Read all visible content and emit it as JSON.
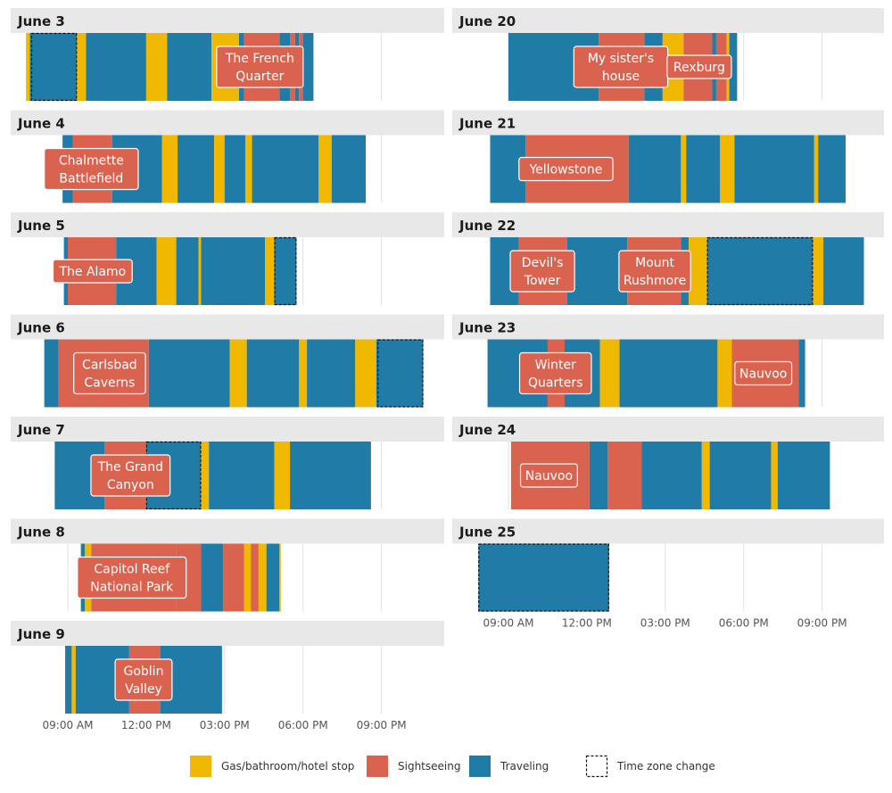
{
  "chart_data": {
    "type": "timeline",
    "colors": {
      "stop": "#F0B800",
      "sight": "#D9634E",
      "travel": "#207BA6",
      "panel": "#E8E8E8",
      "grid": "#E2E2E2",
      "annotation_border": "#ffffff"
    },
    "legend": [
      {
        "key": "stop",
        "label": "Gas/bathroom/hotel stop"
      },
      {
        "key": "sight",
        "label": "Sightseeing"
      },
      {
        "key": "travel",
        "label": "Traveling"
      },
      {
        "key": "tz",
        "label": "Time zone change"
      }
    ],
    "x_ticks": [
      {
        "hour": 9,
        "label": "09:00 AM"
      },
      {
        "hour": 12,
        "label": "12:00 PM"
      },
      {
        "hour": 15,
        "label": "03:00 PM"
      },
      {
        "hour": 18,
        "label": "06:00 PM"
      },
      {
        "hour": 21,
        "label": "09:00 PM"
      }
    ],
    "x_range_hours": [
      7.2,
      20.6
    ],
    "legend_position": "bottom",
    "days": [
      {
        "label": "June 3",
        "column": 0,
        "row": 0,
        "segments": [
          {
            "s": 7.4,
            "e": 7.55,
            "t": "stop"
          },
          {
            "s": 7.55,
            "e": 9.35,
            "t": "travel"
          },
          {
            "s": 9.35,
            "e": 9.7,
            "t": "stop"
          },
          {
            "s": 9.7,
            "e": 12.0,
            "t": "travel"
          },
          {
            "s": 12.0,
            "e": 12.8,
            "t": "stop"
          },
          {
            "s": 12.8,
            "e": 14.5,
            "t": "travel"
          },
          {
            "s": 14.5,
            "e": 15.55,
            "t": "stop"
          },
          {
            "s": 15.55,
            "e": 15.75,
            "t": "travel"
          },
          {
            "s": 15.75,
            "e": 17.1,
            "t": "sight"
          },
          {
            "s": 17.1,
            "e": 17.5,
            "t": "travel"
          },
          {
            "s": 17.5,
            "e": 17.7,
            "t": "sight"
          },
          {
            "s": 17.7,
            "e": 17.85,
            "t": "travel"
          },
          {
            "s": 17.85,
            "e": 18.0,
            "t": "sight"
          },
          {
            "s": 18.0,
            "e": 18.4,
            "t": "travel"
          }
        ],
        "tz": [
          {
            "s": 7.6,
            "e": 9.35
          }
        ],
        "annotations": [
          {
            "text": [
              "The French",
              "Quarter"
            ],
            "at": 16.35
          }
        ]
      },
      {
        "label": "June 4",
        "column": 0,
        "row": 1,
        "segments": [
          {
            "s": 8.8,
            "e": 9.2,
            "t": "travel"
          },
          {
            "s": 9.2,
            "e": 10.7,
            "t": "sight"
          },
          {
            "s": 10.7,
            "e": 12.6,
            "t": "travel"
          },
          {
            "s": 12.6,
            "e": 13.2,
            "t": "stop"
          },
          {
            "s": 13.2,
            "e": 14.6,
            "t": "travel"
          },
          {
            "s": 14.6,
            "e": 15.0,
            "t": "stop"
          },
          {
            "s": 15.0,
            "e": 15.8,
            "t": "travel"
          },
          {
            "s": 15.8,
            "e": 16.05,
            "t": "stop"
          },
          {
            "s": 16.05,
            "e": 18.6,
            "t": "travel"
          },
          {
            "s": 18.6,
            "e": 19.1,
            "t": "stop"
          },
          {
            "s": 19.1,
            "e": 20.4,
            "t": "travel"
          }
        ],
        "tz": [],
        "annotations": [
          {
            "text": [
              "Chalmette",
              "Battlefield"
            ],
            "at": 9.9
          }
        ]
      },
      {
        "label": "June 5",
        "column": 0,
        "row": 2,
        "segments": [
          {
            "s": 8.85,
            "e": 9.0,
            "t": "travel"
          },
          {
            "s": 9.0,
            "e": 10.85,
            "t": "sight"
          },
          {
            "s": 10.85,
            "e": 12.4,
            "t": "travel"
          },
          {
            "s": 12.4,
            "e": 13.15,
            "t": "stop"
          },
          {
            "s": 13.15,
            "e": 14.0,
            "t": "travel"
          },
          {
            "s": 14.0,
            "e": 14.1,
            "t": "stop"
          },
          {
            "s": 14.1,
            "e": 16.55,
            "t": "travel"
          },
          {
            "s": 16.55,
            "e": 16.9,
            "t": "stop"
          },
          {
            "s": 16.9,
            "e": 17.75,
            "t": "travel"
          }
        ],
        "tz": [
          {
            "s": 16.9,
            "e": 17.75
          }
        ],
        "annotations": [
          {
            "text": [
              "The Alamo"
            ],
            "at": 9.95
          }
        ]
      },
      {
        "label": "June 6",
        "column": 0,
        "row": 3,
        "segments": [
          {
            "s": 8.1,
            "e": 8.65,
            "t": "travel"
          },
          {
            "s": 8.65,
            "e": 12.1,
            "t": "sight"
          },
          {
            "s": 12.1,
            "e": 15.2,
            "t": "travel"
          },
          {
            "s": 15.2,
            "e": 15.85,
            "t": "stop"
          },
          {
            "s": 15.85,
            "e": 17.85,
            "t": "travel"
          },
          {
            "s": 17.85,
            "e": 18.15,
            "t": "stop"
          },
          {
            "s": 18.15,
            "e": 20.0,
            "t": "travel"
          },
          {
            "s": 20.0,
            "e": 20.8,
            "t": "stop"
          },
          {
            "s": 20.8,
            "e": 22.6,
            "t": "travel"
          }
        ],
        "tz": [
          {
            "s": 20.85,
            "e": 22.6
          }
        ],
        "annotations": [
          {
            "text": [
              "Carlsbad",
              "Caverns"
            ],
            "at": 10.6
          }
        ]
      },
      {
        "label": "June 7",
        "column": 0,
        "row": 4,
        "segments": [
          {
            "s": 8.5,
            "e": 10.4,
            "t": "travel"
          },
          {
            "s": 10.4,
            "e": 12.0,
            "t": "sight"
          },
          {
            "s": 12.0,
            "e": 14.1,
            "t": "travel"
          },
          {
            "s": 14.1,
            "e": 14.4,
            "t": "stop"
          },
          {
            "s": 14.4,
            "e": 16.9,
            "t": "travel"
          },
          {
            "s": 16.9,
            "e": 17.5,
            "t": "stop"
          },
          {
            "s": 17.5,
            "e": 20.6,
            "t": "travel"
          }
        ],
        "tz": [
          {
            "s": 12.0,
            "e": 14.1
          }
        ],
        "annotations": [
          {
            "text": [
              "The Grand",
              "Canyon"
            ],
            "at": 11.4
          }
        ]
      },
      {
        "label": "June 8",
        "column": 0,
        "row": 5,
        "segments": [
          {
            "s": 9.5,
            "e": 9.65,
            "t": "travel"
          },
          {
            "s": 9.65,
            "e": 9.9,
            "t": "stop"
          },
          {
            "s": 9.9,
            "e": 13.15,
            "t": "sight"
          },
          {
            "s": 13.15,
            "e": 14.1,
            "t": "sight"
          },
          {
            "s": 14.1,
            "e": 14.95,
            "t": "travel"
          },
          {
            "s": 14.95,
            "e": 15.75,
            "t": "sight"
          },
          {
            "s": 15.75,
            "e": 16.0,
            "t": "stop"
          },
          {
            "s": 16.0,
            "e": 16.3,
            "t": "sight"
          },
          {
            "s": 16.3,
            "e": 16.6,
            "t": "stop"
          },
          {
            "s": 16.6,
            "e": 17.1,
            "t": "travel"
          },
          {
            "s": 17.1,
            "e": 17.15,
            "t": "stop"
          }
        ],
        "tz": [],
        "annotations": [
          {
            "text": [
              "Capitol Reef",
              "National Park"
            ],
            "at": 11.45
          }
        ]
      },
      {
        "label": "June 9",
        "column": 0,
        "row": 6,
        "segments": [
          {
            "s": 8.9,
            "e": 9.15,
            "t": "travel"
          },
          {
            "s": 9.15,
            "e": 9.3,
            "t": "stop"
          },
          {
            "s": 9.3,
            "e": 11.35,
            "t": "travel"
          },
          {
            "s": 11.35,
            "e": 12.55,
            "t": "sight"
          },
          {
            "s": 12.55,
            "e": 14.9,
            "t": "travel"
          }
        ],
        "tz": [],
        "annotations": [
          {
            "text": [
              "Goblin",
              "Valley"
            ],
            "at": 11.9
          }
        ]
      },
      {
        "label": "June 20",
        "column": 1,
        "row": 0,
        "segments": [
          {
            "s": 9.0,
            "e": 12.45,
            "t": "travel"
          },
          {
            "s": 12.45,
            "e": 14.2,
            "t": "sight"
          },
          {
            "s": 14.2,
            "e": 14.9,
            "t": "travel"
          },
          {
            "s": 14.9,
            "e": 15.7,
            "t": "stop"
          },
          {
            "s": 15.7,
            "e": 16.8,
            "t": "sight"
          },
          {
            "s": 16.8,
            "e": 16.95,
            "t": "travel"
          },
          {
            "s": 16.95,
            "e": 17.35,
            "t": "sight"
          },
          {
            "s": 17.35,
            "e": 17.45,
            "t": "stop"
          },
          {
            "s": 17.45,
            "e": 17.75,
            "t": "travel"
          }
        ],
        "tz": [],
        "annotations": [
          {
            "text": [
              "My sister's",
              "house"
            ],
            "at": 13.3
          },
          {
            "text": [
              "Rexburg"
            ],
            "at": 16.3
          }
        ]
      },
      {
        "label": "June 21",
        "column": 1,
        "row": 1,
        "segments": [
          {
            "s": 8.3,
            "e": 9.65,
            "t": "travel"
          },
          {
            "s": 9.65,
            "e": 13.6,
            "t": "sight"
          },
          {
            "s": 13.6,
            "e": 15.6,
            "t": "travel"
          },
          {
            "s": 15.6,
            "e": 15.8,
            "t": "stop"
          },
          {
            "s": 15.8,
            "e": 17.1,
            "t": "travel"
          },
          {
            "s": 17.1,
            "e": 17.65,
            "t": "stop"
          },
          {
            "s": 17.65,
            "e": 20.7,
            "t": "travel"
          },
          {
            "s": 20.7,
            "e": 20.85,
            "t": "stop"
          },
          {
            "s": 20.85,
            "e": 21.9,
            "t": "travel"
          }
        ],
        "tz": [],
        "annotations": [
          {
            "text": [
              "Yellowstone"
            ],
            "at": 11.2
          }
        ]
      },
      {
        "label": "June 22",
        "column": 1,
        "row": 2,
        "segments": [
          {
            "s": 8.3,
            "e": 9.4,
            "t": "travel"
          },
          {
            "s": 9.4,
            "e": 11.25,
            "t": "sight"
          },
          {
            "s": 11.25,
            "e": 13.55,
            "t": "travel"
          },
          {
            "s": 13.55,
            "e": 15.6,
            "t": "sight"
          },
          {
            "s": 15.6,
            "e": 15.9,
            "t": "travel"
          },
          {
            "s": 15.9,
            "e": 16.6,
            "t": "stop"
          },
          {
            "s": 16.6,
            "e": 20.65,
            "t": "travel"
          },
          {
            "s": 20.65,
            "e": 21.05,
            "t": "stop"
          },
          {
            "s": 21.05,
            "e": 22.6,
            "t": "travel"
          }
        ],
        "tz": [
          {
            "s": 16.6,
            "e": 20.65
          }
        ],
        "annotations": [
          {
            "text": [
              "Devil's",
              "Tower"
            ],
            "at": 10.3
          },
          {
            "text": [
              "Mount",
              "Rushmore"
            ],
            "at": 14.6
          }
        ]
      },
      {
        "label": "June 23",
        "column": 1,
        "row": 3,
        "segments": [
          {
            "s": 8.2,
            "e": 10.5,
            "t": "travel"
          },
          {
            "s": 10.5,
            "e": 11.15,
            "t": "sight"
          },
          {
            "s": 11.15,
            "e": 12.5,
            "t": "travel"
          },
          {
            "s": 12.5,
            "e": 13.25,
            "t": "stop"
          },
          {
            "s": 13.25,
            "e": 17.0,
            "t": "travel"
          },
          {
            "s": 17.0,
            "e": 17.55,
            "t": "stop"
          },
          {
            "s": 17.55,
            "e": 20.1,
            "t": "sight"
          },
          {
            "s": 20.1,
            "e": 20.35,
            "t": "travel"
          }
        ],
        "tz": [],
        "annotations": [
          {
            "text": [
              "Winter",
              "Quarters"
            ],
            "at": 10.8
          },
          {
            "text": [
              "Nauvoo"
            ],
            "at": 18.75
          }
        ]
      },
      {
        "label": "June 24",
        "column": 1,
        "row": 4,
        "segments": [
          {
            "s": 9.1,
            "e": 12.1,
            "t": "sight"
          },
          {
            "s": 12.1,
            "e": 12.8,
            "t": "travel"
          },
          {
            "s": 12.8,
            "e": 14.1,
            "t": "sight"
          },
          {
            "s": 14.1,
            "e": 16.4,
            "t": "travel"
          },
          {
            "s": 16.4,
            "e": 16.7,
            "t": "stop"
          },
          {
            "s": 16.7,
            "e": 19.05,
            "t": "travel"
          },
          {
            "s": 19.05,
            "e": 19.3,
            "t": "stop"
          },
          {
            "s": 19.3,
            "e": 21.3,
            "t": "travel"
          }
        ],
        "tz": [],
        "annotations": [
          {
            "text": [
              "Nauvoo"
            ],
            "at": 10.55
          }
        ]
      },
      {
        "label": "June 25",
        "column": 1,
        "row": 5,
        "segments": [
          {
            "s": 7.85,
            "e": 12.85,
            "t": "travel"
          }
        ],
        "tz": [
          {
            "s": 7.85,
            "e": 12.85
          }
        ],
        "annotations": []
      }
    ]
  }
}
